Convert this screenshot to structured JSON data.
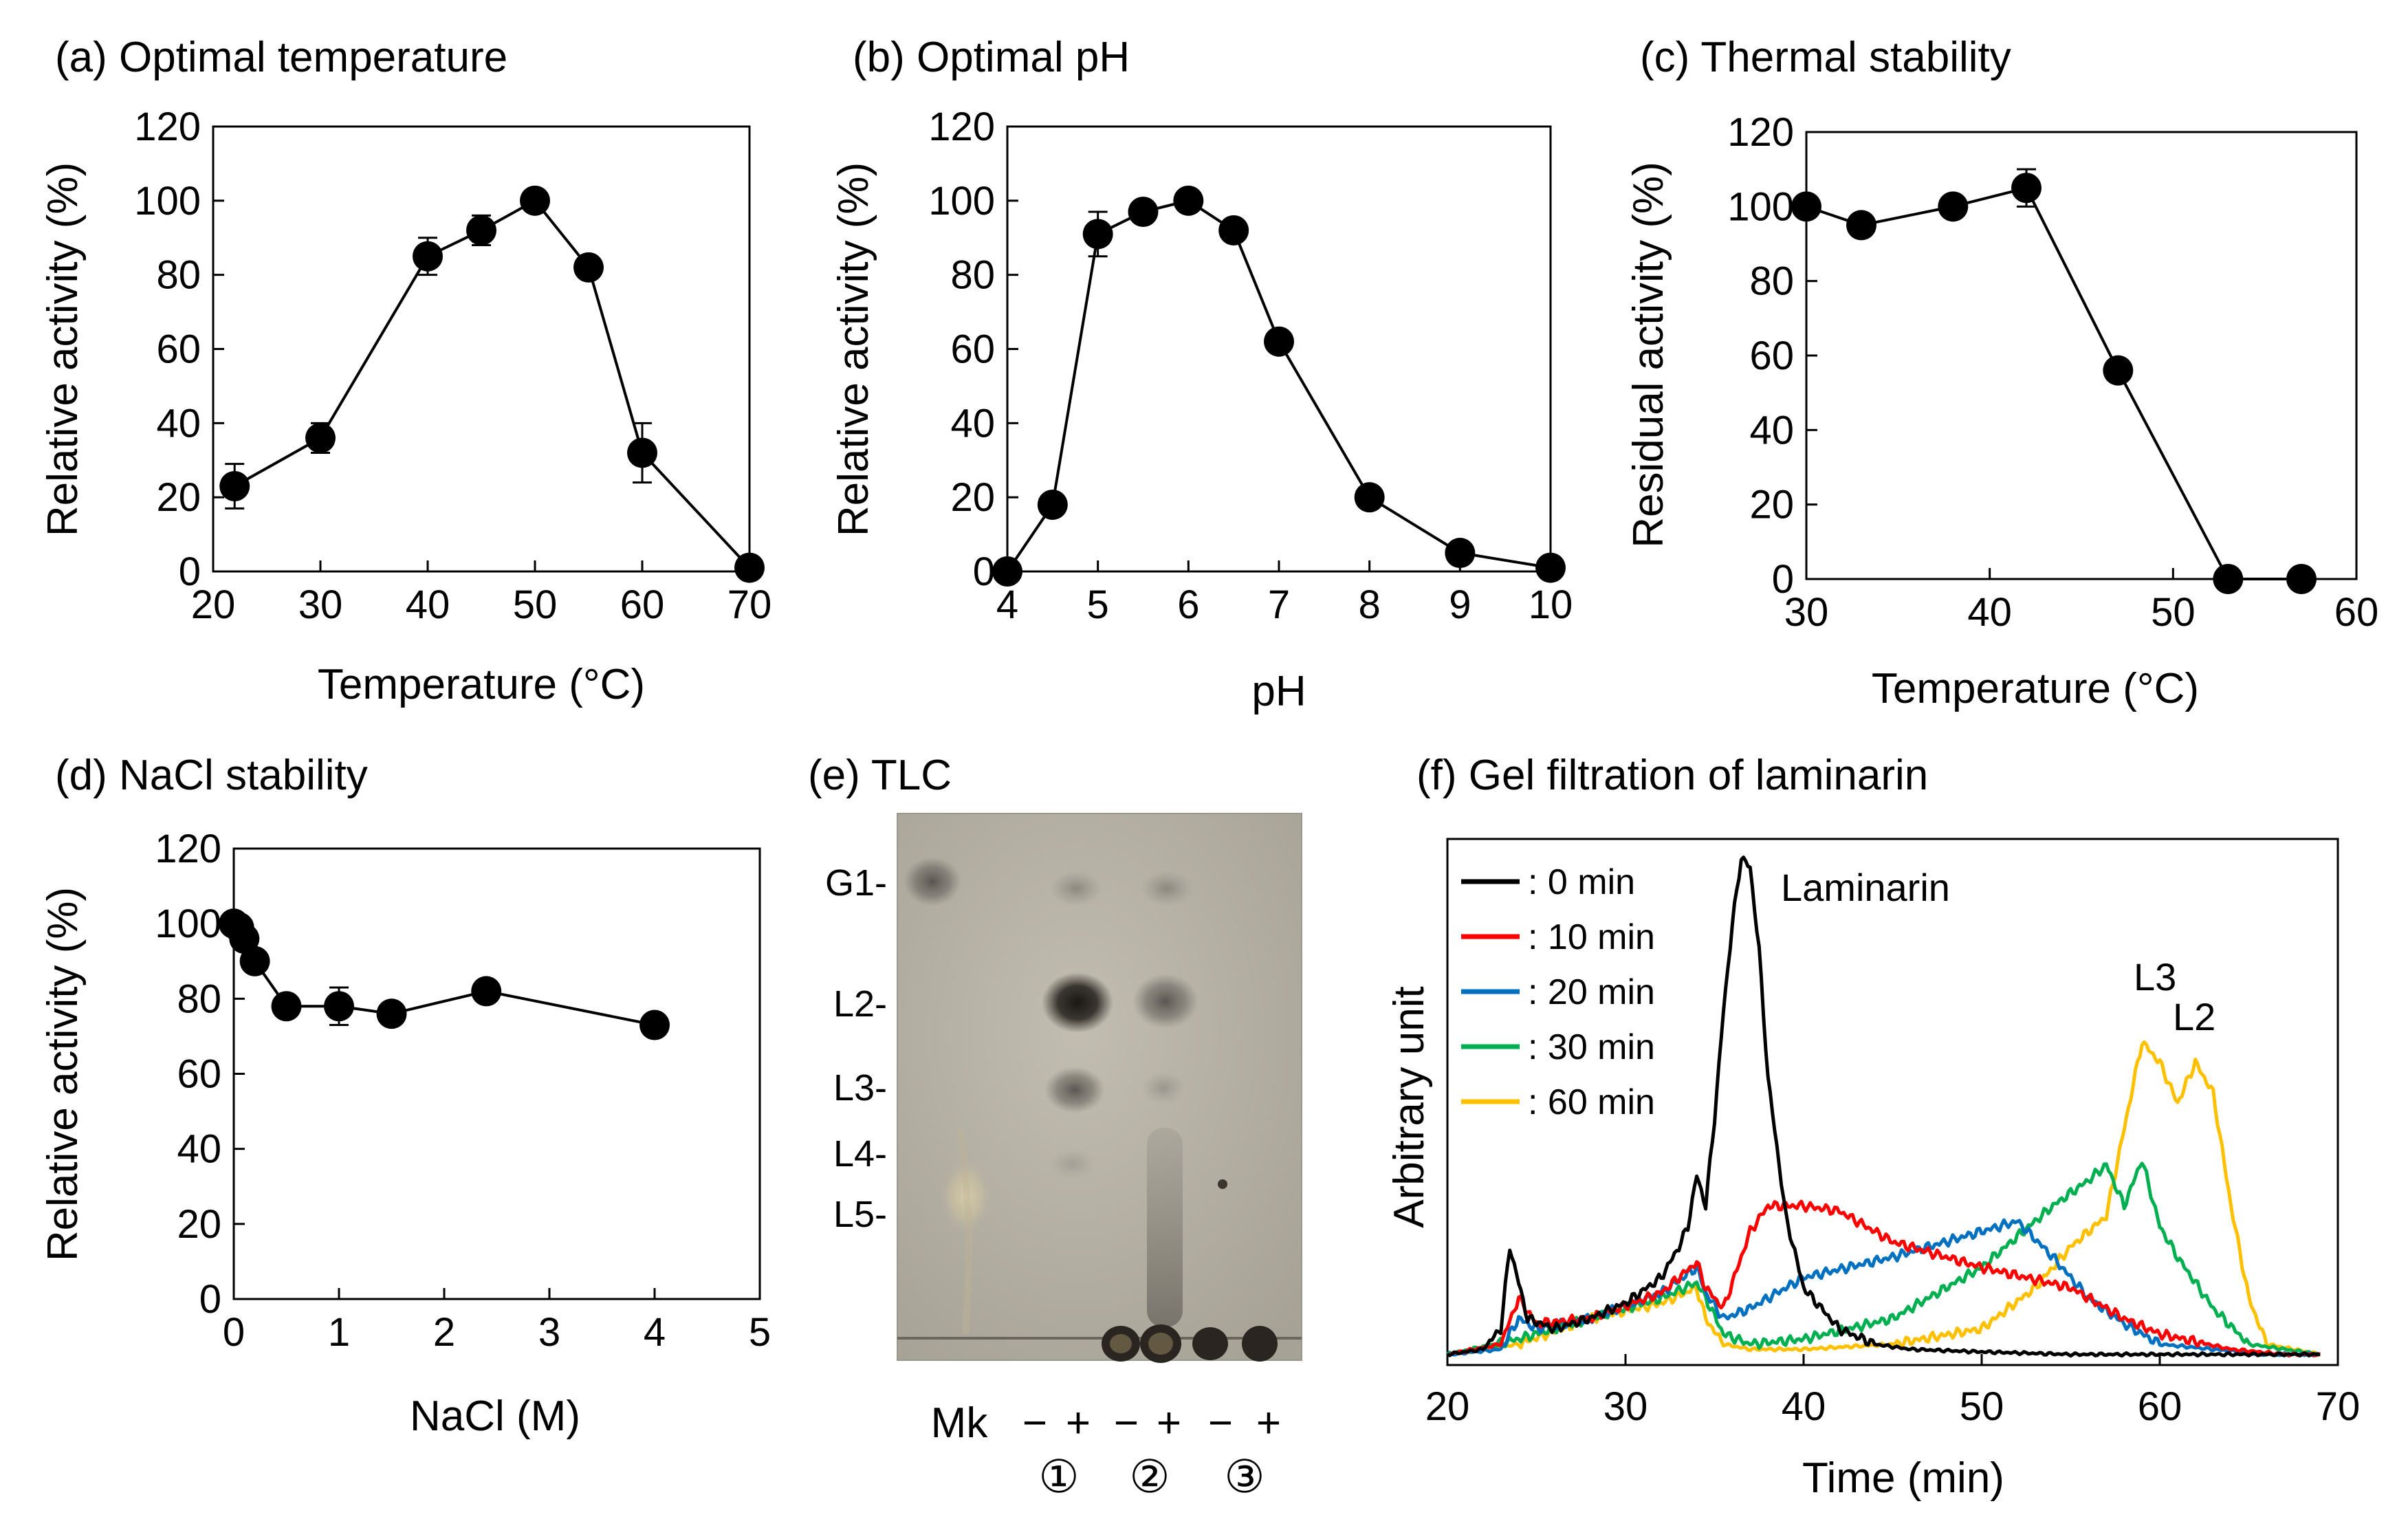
{
  "figure": {
    "chart_data": [
      {
        "id": "a",
        "type": "line",
        "title": "(a) Optimal temperature",
        "xlabel": "Temperature (°C)",
        "ylabel": "Relative activity (%)",
        "xlim": [
          20,
          70
        ],
        "ylim": [
          0,
          120
        ],
        "xticks": [
          20,
          30,
          40,
          50,
          60,
          70
        ],
        "yticks": [
          0,
          20,
          40,
          60,
          80,
          100,
          120
        ],
        "x": [
          22,
          30,
          40,
          45,
          50,
          55,
          60,
          70
        ],
        "y": [
          23,
          36,
          85,
          92,
          100,
          82,
          32,
          1
        ],
        "err": [
          6,
          4,
          5,
          4,
          2,
          2,
          8,
          1
        ]
      },
      {
        "id": "b",
        "type": "line",
        "title": "(b) Optimal pH",
        "xlabel": "pH",
        "ylabel": "Relative activity (%)",
        "xlim": [
          4,
          10
        ],
        "ylim": [
          0,
          120
        ],
        "xticks": [
          4,
          5,
          6,
          7,
          8,
          9,
          10
        ],
        "yticks": [
          0,
          20,
          40,
          60,
          80,
          100,
          120
        ],
        "x": [
          4,
          4.5,
          5,
          5.5,
          6,
          6.5,
          7,
          8,
          9,
          10
        ],
        "y": [
          0,
          18,
          91,
          97,
          100,
          92,
          62,
          20,
          5,
          1
        ],
        "err": [
          0,
          1,
          6,
          2,
          2,
          2,
          2,
          1,
          1,
          0
        ]
      },
      {
        "id": "c",
        "type": "line",
        "title": "(c) Thermal stability",
        "xlabel": "Temperature (°C)",
        "ylabel": "Residual activity (%)",
        "xlim": [
          30,
          60
        ],
        "ylim": [
          0,
          120
        ],
        "xticks": [
          30,
          40,
          50,
          60
        ],
        "yticks": [
          0,
          20,
          40,
          60,
          80,
          100,
          120
        ],
        "x": [
          30,
          33,
          38,
          42,
          47,
          53,
          57
        ],
        "y": [
          100,
          95,
          100,
          105,
          56,
          0,
          0
        ],
        "err": [
          2,
          2,
          2,
          5,
          2,
          0,
          0
        ]
      },
      {
        "id": "d",
        "type": "line",
        "title": "(d) NaCl stability",
        "xlabel": "NaCl (M)",
        "ylabel": "Relative activity (%)",
        "xlim": [
          0,
          5
        ],
        "ylim": [
          0,
          120
        ],
        "xticks": [
          0,
          1,
          2,
          3,
          4,
          5
        ],
        "yticks": [
          0,
          20,
          40,
          60,
          80,
          100,
          120
        ],
        "x": [
          0,
          0.05,
          0.1,
          0.2,
          0.5,
          1.0,
          1.5,
          2.4,
          4.0
        ],
        "y": [
          100,
          99,
          96,
          90,
          78,
          78,
          76,
          82,
          73
        ],
        "err": [
          1,
          1,
          2,
          2,
          2,
          5,
          2,
          2,
          2
        ]
      },
      {
        "id": "f",
        "type": "line",
        "title": "(f) Gel filtration of laminarin",
        "xlabel": "Time (min)",
        "ylabel": "Arbitrary unit",
        "xlim": [
          20,
          70
        ],
        "ylim": [
          0,
          100
        ],
        "xticks": [
          20,
          30,
          40,
          50,
          60,
          70
        ],
        "annotations": [
          "Laminarin",
          "L3",
          "L2"
        ],
        "series": [
          {
            "name": ": 0 min",
            "color": "#000000",
            "x": [
              20,
              22,
              23,
              23.5,
              24.5,
              26,
              28,
              30,
              32,
              33,
              33.5,
              34,
              34.5,
              35,
              35.5,
              36,
              36.5,
              37,
              37.5,
              38,
              39,
              40,
              42,
              44,
              46,
              50,
              55,
              60,
              65,
              69
            ],
            "y": [
              1,
              2,
              6,
              22,
              8,
              6,
              8,
              11,
              16,
              22,
              26,
              36,
              30,
              47,
              68,
              85,
              98,
              96,
              80,
              55,
              28,
              14,
              6,
              3,
              2,
              1.5,
              1,
              1,
              1,
              1
            ]
          },
          {
            "name": ": 10 min",
            "color": "#ff0000",
            "x": [
              20,
              23,
              24,
              25,
              28,
              32,
              34,
              34.5,
              35.5,
              37,
              38,
              40,
              42,
              45,
              50,
              55,
              58,
              60,
              64,
              67,
              69
            ],
            "y": [
              1,
              3,
              12,
              7,
              8,
              13,
              19,
              14,
              10,
              25,
              30,
              30,
              29,
              23,
              18,
              14,
              8,
              5,
              2,
              1,
              1
            ]
          },
          {
            "name": ": 20 min",
            "color": "#0070c0",
            "x": [
              20,
              23,
              24,
              25,
              28,
              32,
              34,
              34.5,
              35.5,
              37,
              40,
              45,
              50,
              52,
              54,
              56,
              58,
              60,
              63,
              66,
              69
            ],
            "y": [
              1,
              2,
              8,
              6,
              8,
              13,
              18,
              13,
              8,
              10,
              16,
              20,
              25,
              27,
              20,
              12,
              7,
              3,
              2,
              1,
              1
            ]
          },
          {
            "name": ": 30 min",
            "color": "#00b050",
            "x": [
              20,
              24,
              28,
              32,
              34,
              34.5,
              35.5,
              37,
              40,
              45,
              50,
              54,
              56,
              57,
              58,
              59,
              60,
              61,
              63,
              65,
              69
            ],
            "y": [
              1,
              4,
              8,
              12,
              15,
              12,
              5,
              3,
              4,
              8,
              18,
              30,
              35,
              38,
              30,
              39,
              26,
              20,
              10,
              3,
              1
            ]
          },
          {
            "name": ": 60 min",
            "color": "#ffc000",
            "x": [
              20,
              24,
              28,
              32,
              34,
              34.5,
              35.5,
              37,
              40,
              45,
              50,
              53,
              55,
              57,
              58,
              59,
              60,
              61,
              62,
              63,
              64,
              65,
              66,
              69
            ],
            "y": [
              1,
              3,
              8,
              11,
              14,
              8,
              3,
              2,
              2,
              3,
              6,
              14,
              22,
              28,
              45,
              62,
              58,
              50,
              58,
              52,
              30,
              12,
              3,
              1
            ]
          }
        ]
      }
    ],
    "tlc": {
      "title": "(e) TLC",
      "standards": [
        "G1-",
        "L2-",
        "L3-",
        "L4-",
        "L5-"
      ],
      "lanes": [
        "Mk",
        "−",
        "+",
        "−",
        "+",
        "−",
        "+"
      ],
      "samples": [
        "①",
        "②",
        "③"
      ]
    },
    "colors": {
      "tlc_background": "#b7b2a6",
      "marker": "#000000"
    }
  }
}
